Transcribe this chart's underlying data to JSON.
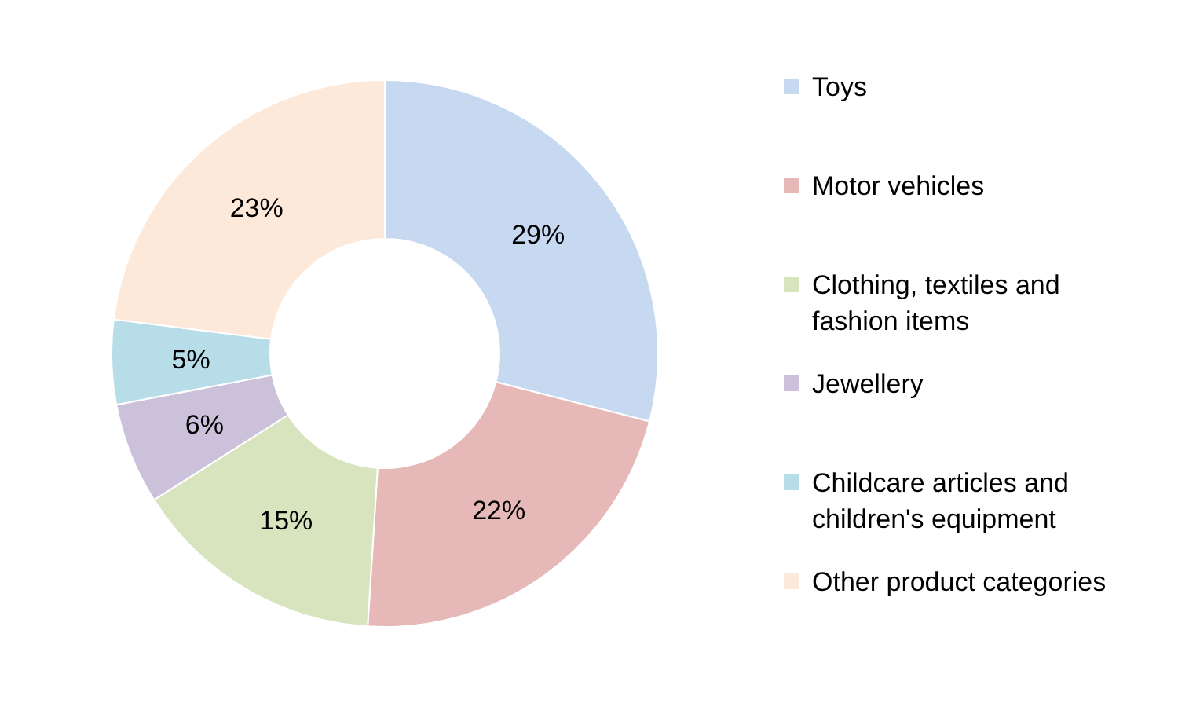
{
  "chart_data": {
    "type": "donut",
    "categories": [
      "Toys",
      "Motor vehicles",
      "Clothing, textiles and fashion items",
      "Jewellery",
      "Childcare articles and children's equipment",
      "Other product categories"
    ],
    "values": [
      29,
      22,
      15,
      6,
      5,
      23
    ],
    "colors": [
      "#c6d9f1",
      "#e6b9b8",
      "#d7e4bd",
      "#ccc1da",
      "#b7dee8",
      "#fde9d9"
    ],
    "value_labels": [
      "29%",
      "22%",
      "15%",
      "6%",
      "5%",
      "23%"
    ],
    "legend": "right"
  }
}
